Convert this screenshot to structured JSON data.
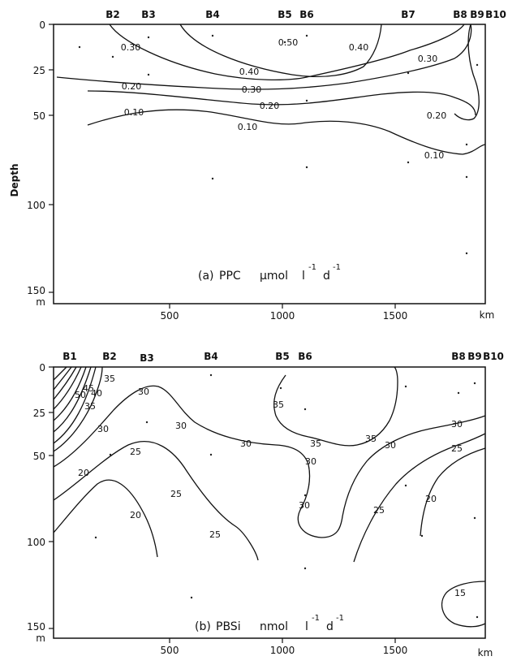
{
  "chart_data": [
    {
      "type": "contour",
      "panel": "a",
      "caption": {
        "prefix": "(a)",
        "name": "PPC",
        "units": [
          "µmol",
          "l",
          "d"
        ],
        "exps": [
          "-1",
          "-1"
        ]
      },
      "y_axis_title": "Depth",
      "y_unit": "m",
      "x_unit": "km",
      "ylim": [
        0,
        150
      ],
      "xlim": [
        0,
        2000
      ],
      "y_ticks": [
        "0",
        "25",
        "50",
        "100",
        "150"
      ],
      "x_ticks": [
        "500",
        "1000",
        "1500"
      ],
      "stations": [
        "B2",
        "B3",
        "B4",
        "B5",
        "B6",
        "B7",
        "B8",
        "B9",
        "B10"
      ],
      "contour_levels": [
        "0.50",
        "0.40",
        "0.40",
        "0.30",
        "0.30",
        "0.30",
        "0.20",
        "0.20",
        "0.20",
        "0.10",
        "0.10",
        "0.10"
      ]
    },
    {
      "type": "contour",
      "panel": "b",
      "caption": {
        "prefix": "(b)",
        "name": "PBSi",
        "units": [
          "nmol",
          "l",
          "d"
        ],
        "exps": [
          "-1",
          "-1"
        ]
      },
      "y_unit": "m",
      "x_unit": "km",
      "ylim": [
        0,
        150
      ],
      "xlim": [
        0,
        2000
      ],
      "y_ticks": [
        "0",
        "25",
        "50",
        "100",
        "150"
      ],
      "x_ticks": [
        "500",
        "1000",
        "1500"
      ],
      "stations": [
        "B1",
        "B2",
        "B3",
        "B4",
        "B5",
        "B6",
        "B8",
        "B9",
        "B10"
      ],
      "contour_levels": [
        "50",
        "45",
        "40",
        "35",
        "35",
        "30",
        "30",
        "30",
        "30",
        "35",
        "35",
        "35",
        "30",
        "30",
        "30",
        "30",
        "25",
        "25",
        "25",
        "25",
        "25",
        "20",
        "20",
        "20",
        "15"
      ]
    }
  ]
}
